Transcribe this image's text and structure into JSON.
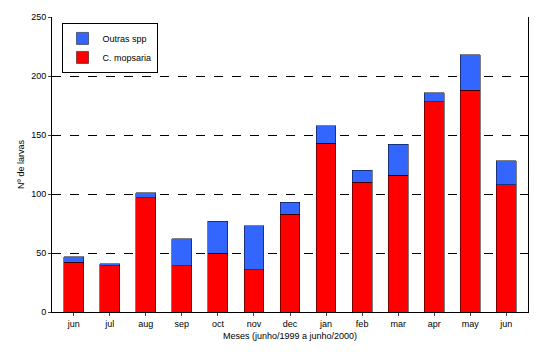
{
  "chart_data": {
    "type": "bar",
    "stacked": true,
    "categories": [
      "jun",
      "jul",
      "aug",
      "sep",
      "oct",
      "nov",
      "dec",
      "jan",
      "feb",
      "mar",
      "apr",
      "may",
      "jun"
    ],
    "series": [
      {
        "name": "C. mopsaria",
        "color": "#ff0000",
        "values": [
          42,
          39,
          97,
          39,
          50,
          36,
          83,
          143,
          110,
          116,
          178,
          188,
          108
        ]
      },
      {
        "name": "Outras spp",
        "color": "#3366ff",
        "values": [
          5,
          2,
          4,
          23,
          27,
          37,
          10,
          15,
          10,
          26,
          8,
          30,
          20
        ]
      }
    ],
    "x_label": "Meses (junho/1999 a junho/2000)",
    "y_label": "Nº de larvas",
    "ylim": [
      0,
      250
    ],
    "yticks": [
      0,
      50,
      100,
      150,
      200,
      250
    ],
    "grid": true,
    "legend": "upper left"
  }
}
